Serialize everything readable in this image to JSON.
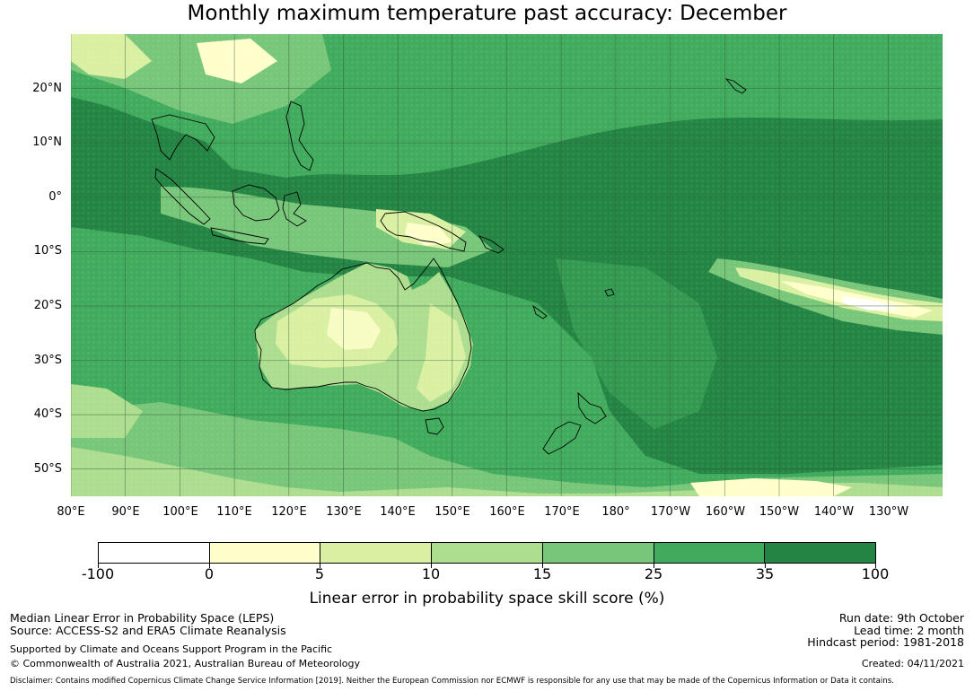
{
  "title": "Monthly maximum temperature past accuracy: December",
  "map": {
    "lat_labels": [
      "20°N",
      "10°N",
      "0°",
      "10°S",
      "20°S",
      "30°S",
      "40°S",
      "50°S"
    ],
    "lon_labels": [
      "80°E",
      "90°E",
      "100°E",
      "110°E",
      "120°E",
      "130°E",
      "140°E",
      "150°E",
      "160°E",
      "170°E",
      "180°",
      "170°W",
      "160°W",
      "150°W",
      "140°W",
      "130°W"
    ],
    "lon_range": [
      "80°E",
      "120°W"
    ],
    "lat_range": [
      "55°S",
      "30°N"
    ]
  },
  "legend": {
    "title": "Linear error in probability space skill score (%)",
    "tick_labels": [
      "-100",
      "0",
      "5",
      "10",
      "15",
      "25",
      "35",
      "100"
    ],
    "colors": [
      "#ffffff",
      "#ffffcc",
      "#d9f0a3",
      "#addd8e",
      "#78c679",
      "#41ab5d",
      "#238443"
    ],
    "gridline_color": "#2f5a37"
  },
  "info_left": {
    "line1": "Median Linear Error in Probability Space (LEPS)",
    "line2": "Source: ACCESS-S2 and ERA5 Climate Reanalysis",
    "line3": "Supported by Climate and Oceans Support Program in the Pacific",
    "line4": "© Commonwealth of Australia 2021, Australian Bureau of Meteorology"
  },
  "info_right": {
    "run_date": "Run date: 9th October",
    "lead_time": "Lead time: 2 month",
    "hindcast": "Hindcast period: 1981-2018",
    "created": "Created: 04/11/2021"
  },
  "disclaimer": "Disclaimer: Contains modified Copernicus Climate Change Service Information [2019]. Neither the European Commission nor ECMWF is responsible for any use that may be made of the Copernicus Information or Data it contains."
}
